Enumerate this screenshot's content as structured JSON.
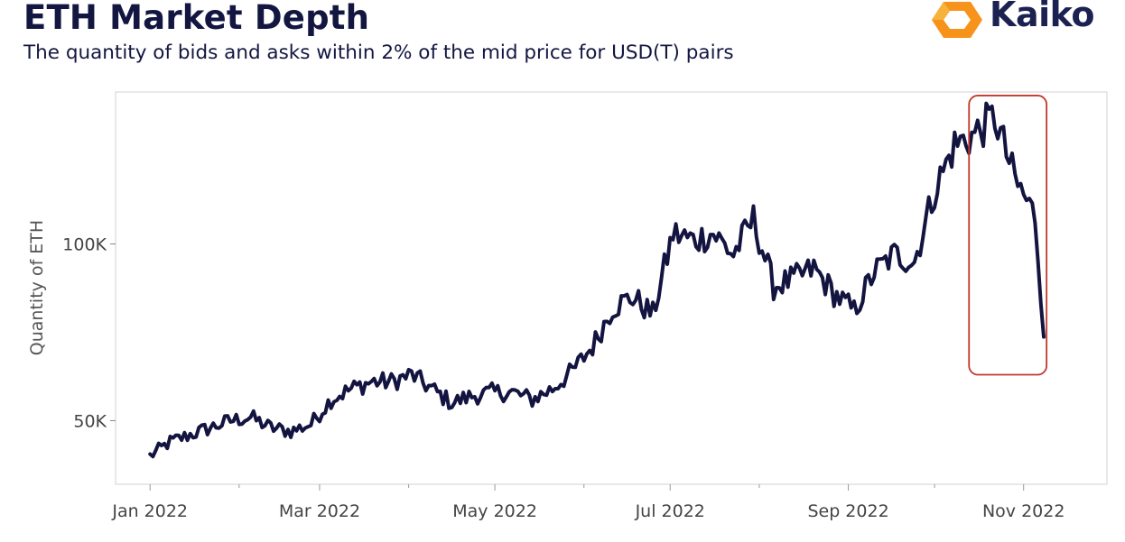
{
  "header": {
    "title": "ETH Market Depth",
    "subtitle": "The quantity of bids and asks within 2% of the mid price for USD(T) pairs"
  },
  "logo": {
    "text": "Kaiko",
    "icon": "kaiko-hexagon-icon",
    "icon_color": "#f7931a"
  },
  "colors": {
    "line": "#131440",
    "highlight": "#c0392b",
    "frame": "#d8d8d8"
  },
  "chart_data": {
    "type": "line",
    "title": "ETH Market Depth",
    "subtitle": "The quantity of bids and asks within 2% of the mid price for USD(T) pairs",
    "xlabel": "",
    "ylabel": "Quantity of ETH",
    "x_tick_labels": [
      "Jan 2022",
      "Mar 2022",
      "May 2022",
      "Jul 2022",
      "Sep 2022",
      "Nov 2022"
    ],
    "y_tick_labels": [
      "50K",
      "100K"
    ],
    "y_ticks": [
      50000,
      100000
    ],
    "ylim": [
      32000,
      143000
    ],
    "xlim": [
      "2021-12-20",
      "2022-11-30"
    ],
    "highlight_range": {
      "x": [
        "2022-10-13",
        "2022-11-09"
      ],
      "y": [
        63000,
        142000
      ]
    },
    "grid": false,
    "series": [
      {
        "name": "",
        "x": [
          "2022-01-01",
          "2022-01-08",
          "2022-01-15",
          "2022-01-22",
          "2022-01-29",
          "2022-02-05",
          "2022-02-12",
          "2022-02-19",
          "2022-02-26",
          "2022-03-05",
          "2022-03-12",
          "2022-03-19",
          "2022-03-26",
          "2022-04-02",
          "2022-04-09",
          "2022-04-16",
          "2022-04-23",
          "2022-04-30",
          "2022-05-07",
          "2022-05-14",
          "2022-05-21",
          "2022-05-28",
          "2022-06-04",
          "2022-06-11",
          "2022-06-18",
          "2022-06-25",
          "2022-07-02",
          "2022-07-09",
          "2022-07-16",
          "2022-07-23",
          "2022-07-30",
          "2022-08-06",
          "2022-08-13",
          "2022-08-20",
          "2022-08-27",
          "2022-09-03",
          "2022-09-10",
          "2022-09-17",
          "2022-09-24",
          "2022-10-01",
          "2022-10-08",
          "2022-10-15",
          "2022-10-22",
          "2022-10-29",
          "2022-11-05",
          "2022-11-08"
        ],
        "values": [
          40000,
          44000,
          46000,
          48000,
          50000,
          51000,
          48000,
          47000,
          49000,
          56000,
          59000,
          61000,
          61000,
          63000,
          59000,
          55000,
          57000,
          58000,
          58000,
          56000,
          59000,
          64000,
          71000,
          82000,
          85000,
          80000,
          103000,
          101000,
          103000,
          97000,
          107000,
          88000,
          90000,
          93000,
          86000,
          81000,
          92000,
          97000,
          95000,
          115000,
          128000,
          131000,
          136000,
          118000,
          108000,
          76000
        ]
      }
    ]
  }
}
